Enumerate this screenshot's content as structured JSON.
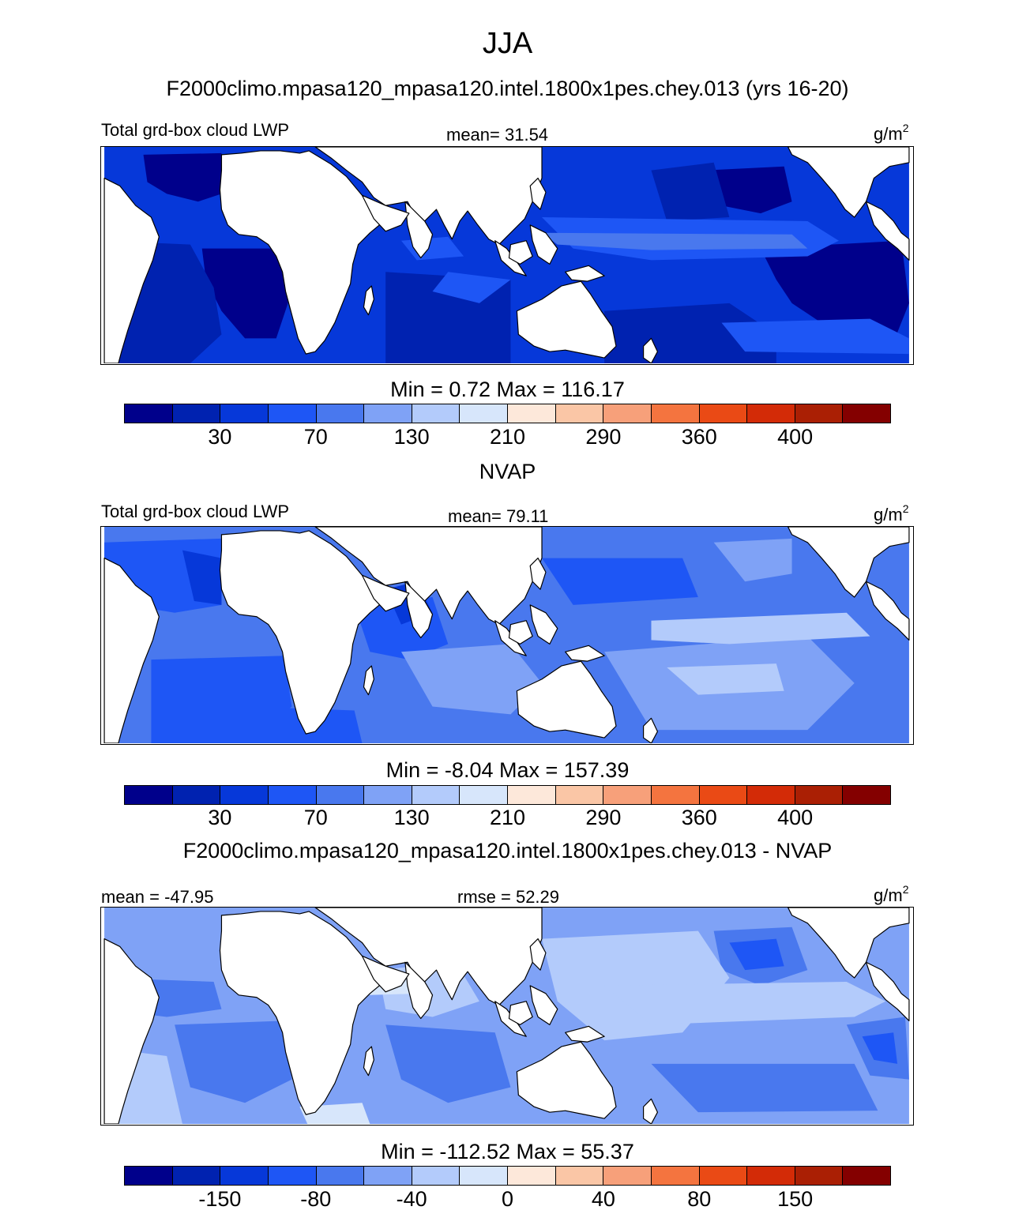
{
  "title": "JJA",
  "colors": {
    "ocean_levels": [
      "#00008b",
      "#0022b0",
      "#0638d9",
      "#1e56f5",
      "#4978ee",
      "#7fa2f6",
      "#b3cbfb",
      "#d7e6fb",
      "#fde8da",
      "#fac6a6",
      "#f7a07a",
      "#f4743f",
      "#ea4a15",
      "#d32b07",
      "#aa1f04",
      "#840000"
    ],
    "land": "#ffffff",
    "coast": "#000000"
  },
  "panels": [
    {
      "heading": "F2000climo.mpasa120_mpasa120.intel.1800x1pes.chey.013 (yrs 16-20)",
      "left_label": "Total grd-box cloud LWP",
      "center_label": "mean=  31.54",
      "units": "g/m",
      "units_sup": "2",
      "minmax": "Min =   0.72 Max = 116.17",
      "ticks": [
        "30",
        "70",
        "130",
        "210",
        "290",
        "360",
        "400"
      ],
      "field_levels": {
        "base": 2,
        "darker": 1,
        "darkest": 0,
        "lighter": 3,
        "lightest": 4
      }
    },
    {
      "heading": "NVAP",
      "left_label": "Total grd-box cloud LWP",
      "center_label": "mean=  79.11",
      "units": "g/m",
      "units_sup": "2",
      "minmax": "Min =  -8.04 Max = 157.39",
      "ticks": [
        "30",
        "70",
        "130",
        "210",
        "290",
        "360",
        "400"
      ],
      "field_levels": {
        "base": 4,
        "darker": 3,
        "darkest": 2,
        "lighter": 5,
        "lightest": 6
      }
    },
    {
      "heading": "F2000climo.mpasa120_mpasa120.intel.1800x1pes.chey.013 - NVAP",
      "left_label": "mean = -47.95",
      "center_label": "rmse =  52.29",
      "units": "g/m",
      "units_sup": "2",
      "minmax": "Min = -112.52 Max =  55.37",
      "ticks": [
        "-150",
        "-80",
        "-40",
        "0",
        "40",
        "80",
        "150"
      ],
      "field_levels": {
        "base": 5,
        "darker": 4,
        "darkest": 3,
        "lighter": 6,
        "lightest": 7
      }
    }
  ]
}
